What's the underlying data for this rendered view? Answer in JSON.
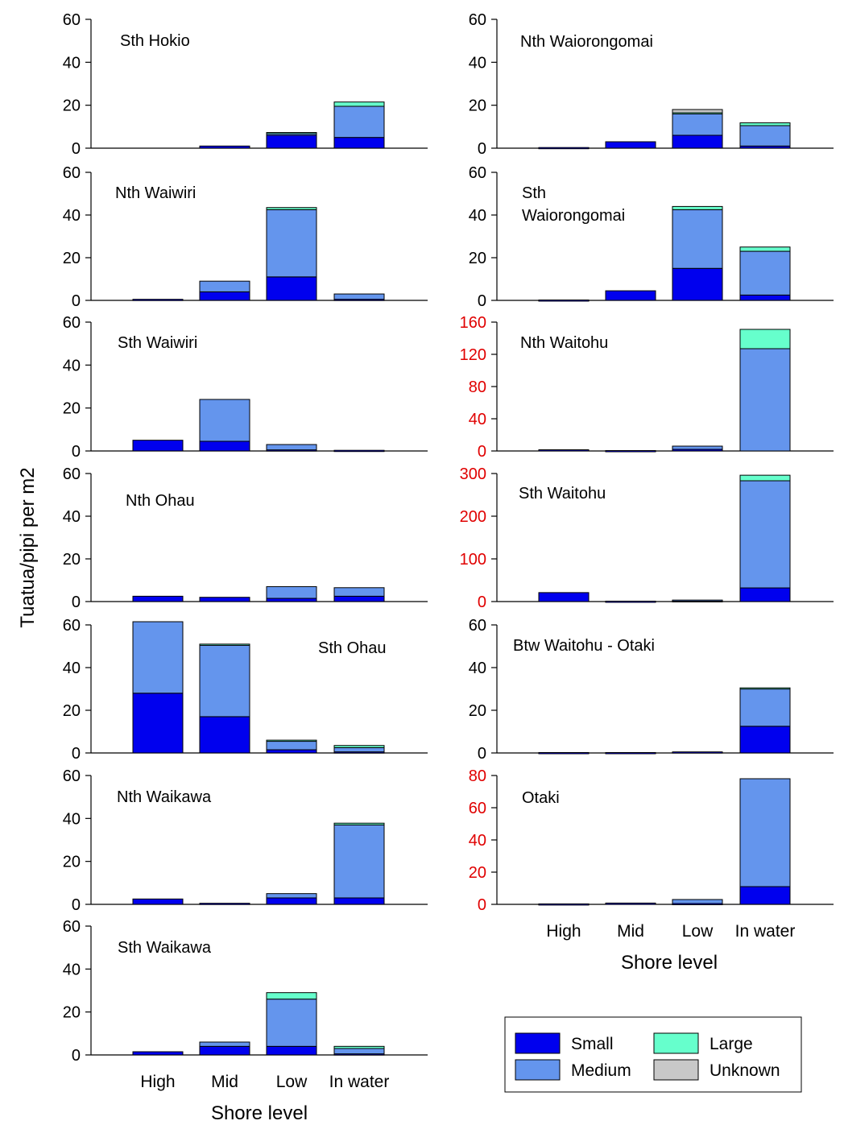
{
  "chart_data": {
    "type": "bar",
    "stacked": true,
    "ylabel": "Tuatua/pipi per m2",
    "xlabel": "Shore level",
    "categories": [
      "High",
      "Mid",
      "Low",
      "In water"
    ],
    "legend": [
      "Small",
      "Large",
      "Medium",
      "Unknown"
    ],
    "colors": {
      "Small": "#0000ee",
      "Medium": "#6495ed",
      "Large": "#66ffcc",
      "Unknown": "#c8c8c8",
      "red_axis": "#e00000"
    },
    "panels": [
      {
        "title": [
          "Sth Hokio"
        ],
        "ylim": [
          0,
          60
        ],
        "yticks": [
          0,
          20,
          40,
          60
        ],
        "red_axis": false,
        "stacks": [
          {
            "Small": 0,
            "Medium": 0,
            "Large": 0,
            "Unknown": 0
          },
          {
            "Small": 1,
            "Medium": 0,
            "Large": 0,
            "Unknown": 0
          },
          {
            "Small": 6,
            "Medium": 1,
            "Large": 0.3,
            "Unknown": 0
          },
          {
            "Small": 5,
            "Medium": 14.5,
            "Large": 2,
            "Unknown": 0
          }
        ]
      },
      {
        "title": [
          "Nth Waiwiri"
        ],
        "ylim": [
          0,
          60
        ],
        "yticks": [
          0,
          20,
          40,
          60
        ],
        "red_axis": false,
        "stacks": [
          {
            "Small": 0.5,
            "Medium": 0,
            "Large": 0,
            "Unknown": 0
          },
          {
            "Small": 4,
            "Medium": 5,
            "Large": 0,
            "Unknown": 0
          },
          {
            "Small": 11,
            "Medium": 31.5,
            "Large": 1,
            "Unknown": 0
          },
          {
            "Small": 0.5,
            "Medium": 2.5,
            "Large": 0,
            "Unknown": 0
          }
        ]
      },
      {
        "title": [
          "Sth Waiwiri"
        ],
        "ylim": [
          0,
          60
        ],
        "yticks": [
          0,
          20,
          40,
          60
        ],
        "red_axis": false,
        "stacks": [
          {
            "Small": 5,
            "Medium": 0,
            "Large": 0,
            "Unknown": 0
          },
          {
            "Small": 4.5,
            "Medium": 19.5,
            "Large": 0,
            "Unknown": 0
          },
          {
            "Small": 0.5,
            "Medium": 2.5,
            "Large": 0,
            "Unknown": 0
          },
          {
            "Small": 0.3,
            "Medium": 0,
            "Large": 0,
            "Unknown": 0
          }
        ]
      },
      {
        "title": [
          "Nth Ohau"
        ],
        "ylim": [
          0,
          60
        ],
        "yticks": [
          0,
          20,
          40,
          60
        ],
        "red_axis": false,
        "stacks": [
          {
            "Small": 2.5,
            "Medium": 0,
            "Large": 0,
            "Unknown": 0
          },
          {
            "Small": 2,
            "Medium": 0,
            "Large": 0,
            "Unknown": 0
          },
          {
            "Small": 1.5,
            "Medium": 5.5,
            "Large": 0,
            "Unknown": 0
          },
          {
            "Small": 2.5,
            "Medium": 4,
            "Large": 0,
            "Unknown": 0
          }
        ]
      },
      {
        "title": [
          "Sth Ohau"
        ],
        "ylim": [
          0,
          60
        ],
        "yticks": [
          0,
          20,
          40,
          60
        ],
        "red_axis": false,
        "stacks": [
          {
            "Small": 28,
            "Medium": 33.5,
            "Large": 0,
            "Unknown": 0
          },
          {
            "Small": 17,
            "Medium": 33.5,
            "Large": 0.5,
            "Unknown": 0
          },
          {
            "Small": 1.5,
            "Medium": 4,
            "Large": 0.5,
            "Unknown": 0
          },
          {
            "Small": 0.5,
            "Medium": 2,
            "Large": 1,
            "Unknown": 0
          }
        ]
      },
      {
        "title": [
          "Nth Waikawa"
        ],
        "ylim": [
          0,
          60
        ],
        "yticks": [
          0,
          20,
          40,
          60
        ],
        "red_axis": false,
        "stacks": [
          {
            "Small": 2.5,
            "Medium": 0,
            "Large": 0,
            "Unknown": 0
          },
          {
            "Small": 0.5,
            "Medium": 0,
            "Large": 0,
            "Unknown": 0
          },
          {
            "Small": 3,
            "Medium": 2,
            "Large": 0,
            "Unknown": 0
          },
          {
            "Small": 3,
            "Medium": 34,
            "Large": 0.8,
            "Unknown": 0
          }
        ]
      },
      {
        "title": [
          "Sth Waikawa"
        ],
        "ylim": [
          0,
          60
        ],
        "yticks": [
          0,
          20,
          40,
          60
        ],
        "red_axis": false,
        "stacks": [
          {
            "Small": 1.5,
            "Medium": 0,
            "Large": 0,
            "Unknown": 0
          },
          {
            "Small": 4,
            "Medium": 2,
            "Large": 0,
            "Unknown": 0
          },
          {
            "Small": 4,
            "Medium": 22,
            "Large": 3,
            "Unknown": 0
          },
          {
            "Small": 0.5,
            "Medium": 2.5,
            "Large": 1,
            "Unknown": 0
          }
        ]
      },
      {
        "title": [
          "Nth Waiorongomai"
        ],
        "ylim": [
          0,
          60
        ],
        "yticks": [
          0,
          20,
          40,
          60
        ],
        "red_axis": false,
        "stacks": [
          {
            "Small": 0.3,
            "Medium": 0,
            "Large": 0,
            "Unknown": 0
          },
          {
            "Small": 3,
            "Medium": 0,
            "Large": 0,
            "Unknown": 0
          },
          {
            "Small": 6,
            "Medium": 10,
            "Large": 0.5,
            "Unknown": 1.5
          },
          {
            "Small": 1,
            "Medium": 9.5,
            "Large": 1.3,
            "Unknown": 0
          }
        ]
      },
      {
        "title": [
          "Sth",
          "Waiorongomai"
        ],
        "ylim": [
          0,
          60
        ],
        "yticks": [
          0,
          20,
          40,
          60
        ],
        "red_axis": false,
        "stacks": [
          {
            "Small": 0.2,
            "Medium": 0,
            "Large": 0,
            "Unknown": 0
          },
          {
            "Small": 4.5,
            "Medium": 0,
            "Large": 0,
            "Unknown": 0
          },
          {
            "Small": 15,
            "Medium": 27.5,
            "Large": 1.5,
            "Unknown": 0
          },
          {
            "Small": 2.5,
            "Medium": 20.5,
            "Large": 2,
            "Unknown": 0
          }
        ]
      },
      {
        "title": [
          "Nth Waitohu"
        ],
        "ylim": [
          0,
          160
        ],
        "yticks": [
          0,
          40,
          80,
          120,
          160
        ],
        "red_axis": true,
        "stacks": [
          {
            "Small": 1.5,
            "Medium": 0,
            "Large": 0,
            "Unknown": 0
          },
          {
            "Small": 0.5,
            "Medium": 0,
            "Large": 0,
            "Unknown": 0
          },
          {
            "Small": 2,
            "Medium": 4,
            "Large": 0,
            "Unknown": 0
          },
          {
            "Small": 0,
            "Medium": 127,
            "Large": 24,
            "Unknown": 0
          }
        ]
      },
      {
        "title": [
          "Sth Waitohu"
        ],
        "ylim": [
          0,
          300
        ],
        "yticks": [
          0,
          100,
          200,
          300
        ],
        "red_axis": true,
        "stacks": [
          {
            "Small": 21,
            "Medium": 0,
            "Large": 0,
            "Unknown": 0
          },
          {
            "Small": 1,
            "Medium": 0,
            "Large": 0,
            "Unknown": 0
          },
          {
            "Small": 2,
            "Medium": 1.5,
            "Large": 0,
            "Unknown": 0
          },
          {
            "Small": 32,
            "Medium": 251,
            "Large": 13,
            "Unknown": 0
          }
        ]
      },
      {
        "title": [
          "Btw Waitohu - Otaki"
        ],
        "ylim": [
          0,
          60
        ],
        "yticks": [
          0,
          20,
          40,
          60
        ],
        "red_axis": false,
        "stacks": [
          {
            "Small": 0.2,
            "Medium": 0,
            "Large": 0,
            "Unknown": 0
          },
          {
            "Small": 0.2,
            "Medium": 0,
            "Large": 0,
            "Unknown": 0
          },
          {
            "Small": 0.5,
            "Medium": 0,
            "Large": 0,
            "Unknown": 0
          },
          {
            "Small": 12.5,
            "Medium": 17.5,
            "Large": 0.5,
            "Unknown": 0
          }
        ]
      },
      {
        "title": [
          "Otaki"
        ],
        "ylim": [
          0,
          80
        ],
        "yticks": [
          0,
          20,
          40,
          60,
          80
        ],
        "red_axis": true,
        "stacks": [
          {
            "Small": 0.3,
            "Medium": 0,
            "Large": 0,
            "Unknown": 0
          },
          {
            "Small": 0.8,
            "Medium": 0,
            "Large": 0,
            "Unknown": 0
          },
          {
            "Small": 0.5,
            "Medium": 2.5,
            "Large": 0,
            "Unknown": 0
          },
          {
            "Small": 11,
            "Medium": 67,
            "Large": 0,
            "Unknown": 0
          }
        ]
      }
    ]
  }
}
